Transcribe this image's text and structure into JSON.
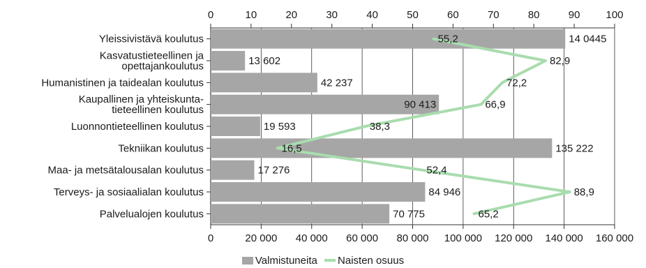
{
  "chart_data": {
    "type": "bar",
    "orientation": "horizontal",
    "categories": [
      "Yleissivistävä koulutus",
      "Kasvatustieteellinen ja\nopettajankoulutus",
      "Humanistinen ja taidealan koulutus",
      "Kaupallinen ja yhteiskunta-\ntieteellinen koulutus",
      "Luonnontieteellinen koulutus",
      "Tekniikan koulutus",
      "Maa- ja metsätalousalan koulutus",
      "Terveys- ja sosiaalialan koulutus",
      "Palvelualojen koulutus"
    ],
    "series": [
      {
        "name": "Valmistuneita",
        "type": "bar",
        "axis": "bottom",
        "values": [
          140445,
          13602,
          42237,
          90413,
          19593,
          135222,
          17276,
          84946,
          70775
        ],
        "labels": [
          "14 0445",
          "13 602",
          "42 237",
          "90 413",
          "19 593",
          "135 222",
          "17 276",
          "84 946",
          "70 775"
        ]
      },
      {
        "name": "Naisten osuus",
        "type": "line",
        "axis": "top",
        "values": [
          55.2,
          82.9,
          72.2,
          66.9,
          38.3,
          16.5,
          52.4,
          88.9,
          65.2
        ],
        "labels": [
          "55,2",
          "82,9",
          "72,2",
          "66,9",
          "38,3",
          "16,5",
          "52,4",
          "88,9",
          "65,2"
        ]
      }
    ],
    "bottom_axis": {
      "range": [
        0,
        160000
      ],
      "ticks": [
        "0",
        "20 000",
        "40 000",
        "60 000",
        "80 000",
        "100 000",
        "120 000",
        "140 000",
        "160 000"
      ]
    },
    "top_axis": {
      "range": [
        0,
        100
      ],
      "ticks": [
        "0",
        "10",
        "20",
        "30",
        "40",
        "50",
        "60",
        "70",
        "80",
        "90",
        "100"
      ]
    },
    "grid": true,
    "legend_position": "bottom",
    "colors": {
      "bar": "#a6a6a6",
      "line": "#a9dcae",
      "grid": "#333333"
    }
  }
}
